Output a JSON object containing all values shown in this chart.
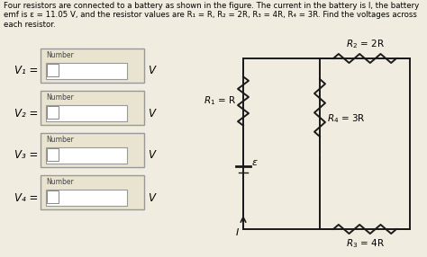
{
  "title_text": "Four resistors are connected to a battery as shown in the figure. The current in the battery is I, the battery\nemf is ε = 11.05 V, and the resistor values are R₁ = R, R₂ = 2R, R₃ = 4R, R₄ = 3R. Find the voltages across\neach resistor.",
  "bg_color": "#f0ede0",
  "box_bg": "#e8e4d0",
  "box_border": "#999999",
  "input_bg": "#ffffff",
  "labels": [
    "V₁ =",
    "V₂ =",
    "V₃ =",
    "V₄ ="
  ],
  "unit": "V",
  "number_label": "Number",
  "circuit_color": "#1a1a1a",
  "emf_label": "ε",
  "current_label": "I",
  "title_fontsize": 6.2,
  "label_fontsize": 8.5,
  "resistor_fontsize": 7.5
}
